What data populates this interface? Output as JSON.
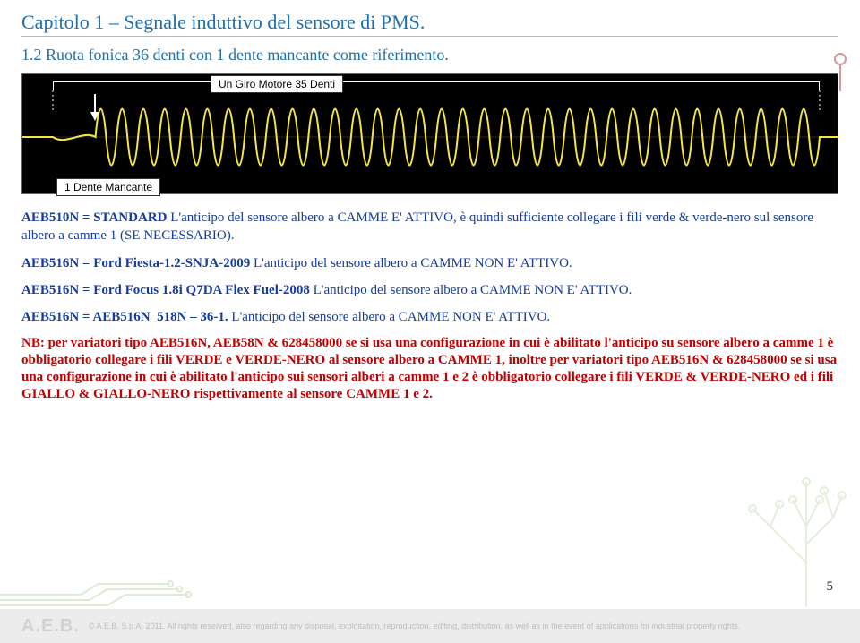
{
  "chapter_title": "Capitolo 1 – Segnale induttivo del sensore di PMS.",
  "subtitle": "1.2 Ruota fonica 36 denti con 1 dente mancante come riferimento.",
  "waveform": {
    "bracket_label": "Un Giro Motore 35 Denti",
    "missing_label": "1 Dente Mancante",
    "color": "#f5e642",
    "background": "#000000",
    "tooth_count": 35,
    "gap_at_tooth": 1
  },
  "paragraphs": {
    "p1_label": "AEB510N = STANDARD",
    "p1_body": " L'anticipo del sensore albero a CAMME E' ATTIVO, è quindi sufficiente collegare i fili verde & verde-nero sul sensore albero a camme 1 (SE NECESSARIO).",
    "p2_label": "AEB516N = Ford Fiesta-1.2-SNJA-2009",
    "p2_body": " L'anticipo del sensore albero a CAMME NON E' ATTIVO.",
    "p3_label": "AEB516N = Ford Focus 1.8i Q7DA Flex Fuel-2008",
    "p3_body": " L'anticipo del sensore albero a CAMME NON E' ATTIVO.",
    "p4_label": "AEB516N = AEB516N_518N – 36-1.",
    "p4_body": " L'anticipo del sensore albero a CAMME NON E' ATTIVO."
  },
  "nb": {
    "label": "NB:",
    "body": " per variatori tipo AEB516N, AEB58N & 628458000 se si usa una configurazione in cui è abilitato l'anticipo su sensore albero a camme 1 è obbligatorio collegare i fili  VERDE e VERDE-NERO al sensore albero a CAMME 1,  inoltre per variatori tipo AEB516N & 628458000 se si usa una configurazione in cui è abilitato l'anticipo sui sensori alberi a camme 1 e 2 è obbligatorio collegare i fili  VERDE & VERDE-NERO ed i fili GIALLO & GIALLO-NERO rispettivamente al sensore CAMME 1 e 2."
  },
  "page_number": "5",
  "footer": {
    "logo": "A.E.B.",
    "copy": "© A.E.B. S.p.A. 2011. All rights reserved, also regarding any disposal, exploitation, reproduction, editing, distribution, as well as in the event of applications for industrial property rights."
  },
  "colors": {
    "heading": "#1f6fad",
    "body_blue": "#143b9e",
    "nb_red": "#c00000",
    "wave_yellow": "#f5e642",
    "deco_green": "#a8d08d"
  }
}
